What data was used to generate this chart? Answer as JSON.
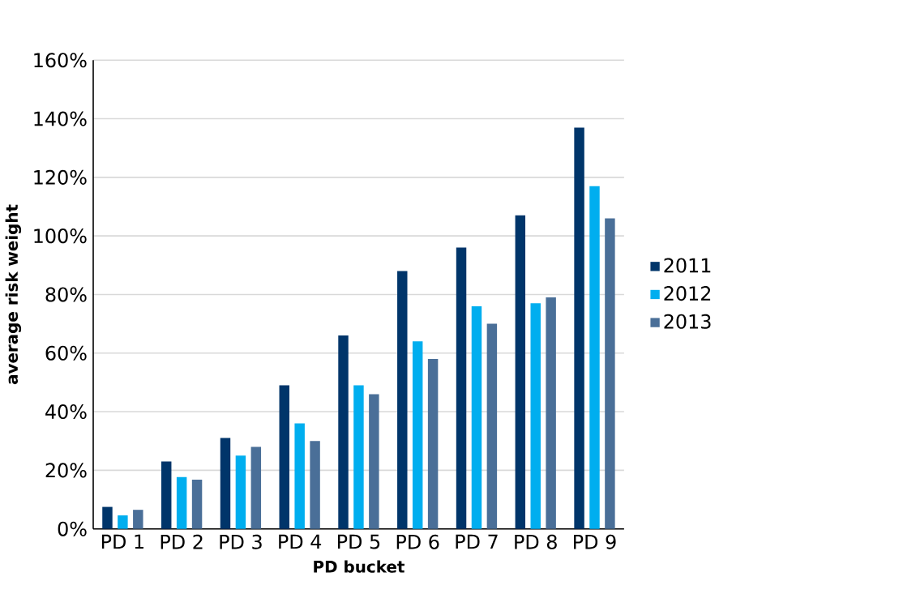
{
  "chart_data": {
    "type": "bar",
    "xlabel": "PD bucket",
    "ylabel": "average risk weight",
    "categories": [
      "PD 1",
      "PD 2",
      "PD 3",
      "PD 4",
      "PD 5",
      "PD 6",
      "PD 7",
      "PD 8",
      "PD 9"
    ],
    "series": [
      {
        "name": "2011",
        "color": "#00356a",
        "values": [
          7.5,
          23,
          31,
          49,
          66,
          88,
          96,
          107,
          137
        ]
      },
      {
        "name": "2012",
        "color": "#00aeef",
        "values": [
          4.6,
          17.7,
          25,
          36,
          49,
          64,
          76,
          77,
          117
        ]
      },
      {
        "name": "2013",
        "color": "#4a6f98",
        "values": [
          6.5,
          16.8,
          28,
          30,
          46,
          58,
          70,
          79,
          106
        ]
      }
    ],
    "ylim": [
      0,
      160
    ],
    "yticks": [
      {
        "value": 0,
        "label": "0%"
      },
      {
        "value": 20,
        "label": "20%"
      },
      {
        "value": 40,
        "label": "40%"
      },
      {
        "value": 60,
        "label": "60%"
      },
      {
        "value": 80,
        "label": "80%"
      },
      {
        "value": 100,
        "label": "100%"
      },
      {
        "value": 120,
        "label": "120%"
      },
      {
        "value": 140,
        "label": "140%"
      },
      {
        "value": 160,
        "label": "160%"
      }
    ],
    "grid": "y",
    "legend": "right"
  }
}
